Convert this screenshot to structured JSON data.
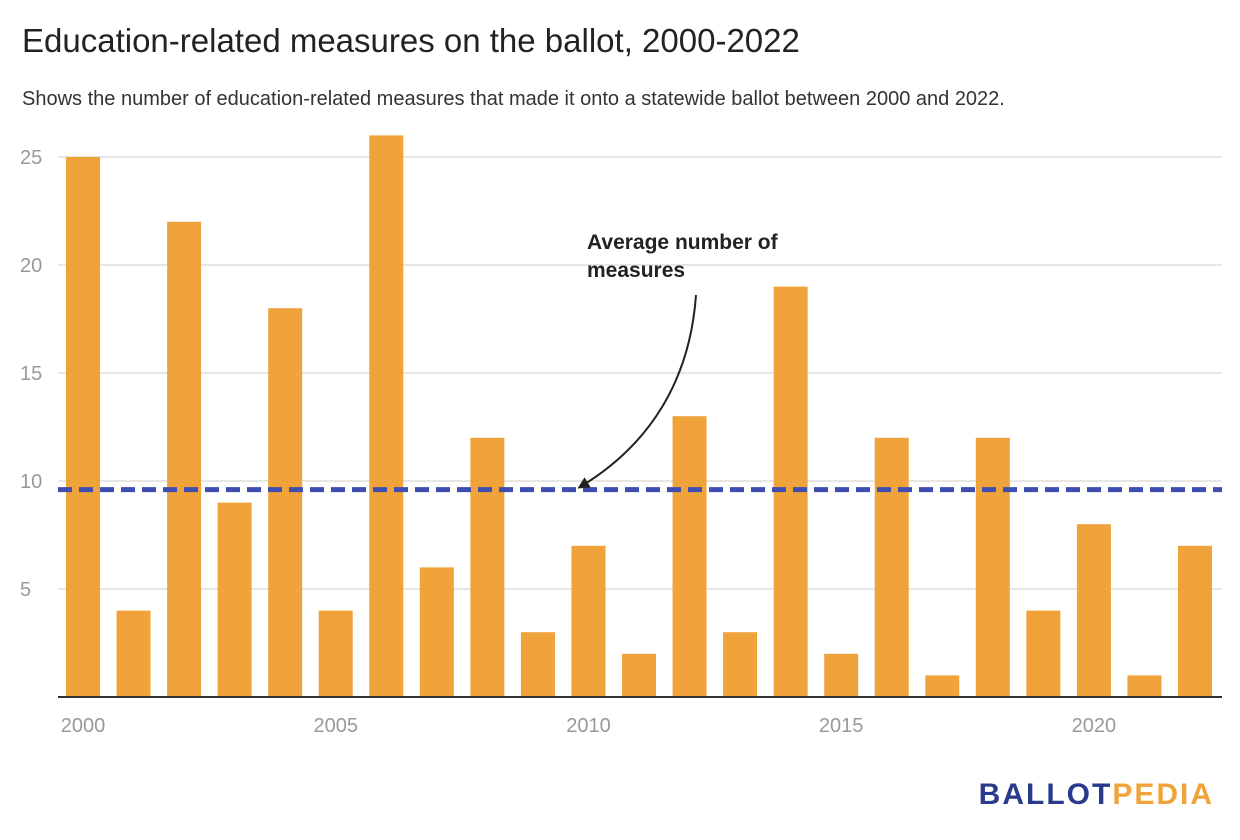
{
  "title": "Education-related measures on the ballot, 2000-2022",
  "subtitle": "Shows the number of education-related measures that made it onto a statewide ballot between 2000 and 2022.",
  "logo": {
    "part1": "BALLOT",
    "part2": "PEDIA"
  },
  "colors": {
    "bar": "#f0a33a",
    "average_line": "#3d4db0",
    "grid": "#dddddd",
    "axis": "#333333",
    "logo_primary": "#2a3a8c",
    "logo_accent": "#f0a33a"
  },
  "chart_data": {
    "type": "bar",
    "title": "Education-related measures on the ballot, 2000-2022",
    "subtitle": "Shows the number of education-related measures that made it onto a statewide ballot between 2000 and 2022.",
    "xlabel": "",
    "ylabel": "",
    "categories": [
      2000,
      2001,
      2002,
      2003,
      2004,
      2005,
      2006,
      2007,
      2008,
      2009,
      2010,
      2011,
      2012,
      2013,
      2014,
      2015,
      2016,
      2017,
      2018,
      2019,
      2020,
      2021,
      2022
    ],
    "values": [
      25,
      4,
      22,
      9,
      18,
      4,
      26,
      6,
      12,
      3,
      7,
      2,
      13,
      3,
      19,
      2,
      12,
      1,
      12,
      4,
      8,
      1,
      7
    ],
    "ylim": [
      0,
      26
    ],
    "y_ticks": [
      5,
      10,
      15,
      20,
      25
    ],
    "x_ticks": [
      2000,
      2005,
      2010,
      2015,
      2020
    ],
    "grid": true,
    "average": 9.6,
    "annotation": {
      "lines": [
        "Average number of",
        "measures"
      ]
    }
  }
}
